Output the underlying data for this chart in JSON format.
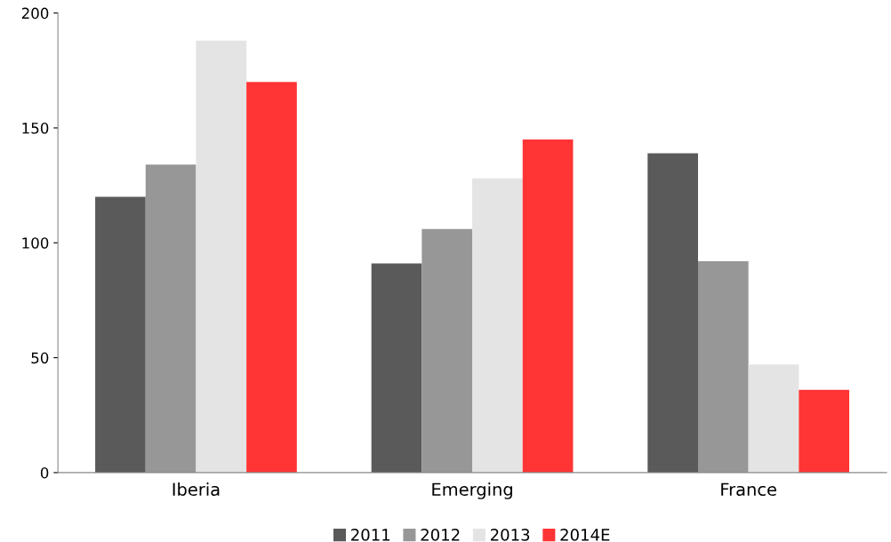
{
  "chart_data": {
    "type": "bar",
    "categories": [
      "Iberia",
      "Emerging",
      "France"
    ],
    "series": [
      {
        "name": "2011",
        "color": "#5a5a5a",
        "values": [
          120,
          91,
          139
        ]
      },
      {
        "name": "2012",
        "color": "#979797",
        "values": [
          134,
          106,
          92
        ]
      },
      {
        "name": "2013",
        "color": "#e4e4e4",
        "values": [
          188,
          128,
          47
        ]
      },
      {
        "name": "2014E",
        "color": "#ff3434",
        "values": [
          170,
          145,
          36
        ]
      }
    ],
    "ylim": [
      0,
      200
    ],
    "yticks": [
      0,
      50,
      100,
      150,
      200
    ],
    "grid": false,
    "legend": "bottom"
  }
}
